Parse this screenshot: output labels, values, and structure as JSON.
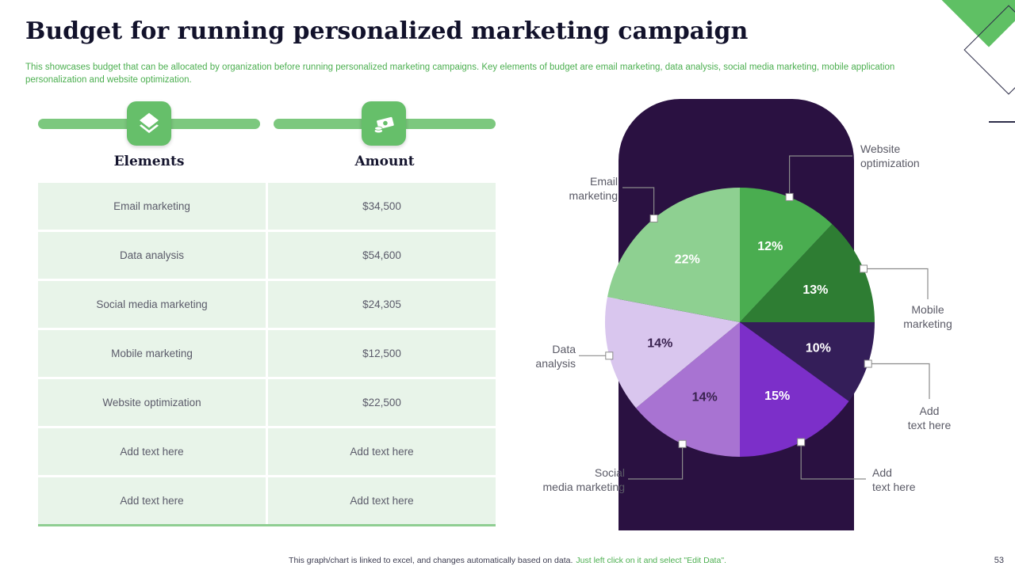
{
  "slide": {
    "title": "Budget for running personalized marketing campaign",
    "subtitle": "This showcases budget that can be allocated by organization before running personalized marketing campaigns. Key elements of budget are email marketing, data analysis, social media marketing, mobile application personalization and website optimization.",
    "footer_plain": "This graph/chart is linked to excel, and changes automatically based on data.",
    "footer_highlight": "Just left click on it and select \"Edit Data\".",
    "page_number": "53"
  },
  "table": {
    "columns": [
      "Elements",
      "Amount"
    ],
    "header_icons": [
      "layers-icon",
      "money-icon"
    ],
    "rows": [
      [
        "Email marketing",
        "$34,500"
      ],
      [
        "Data analysis",
        "$54,600"
      ],
      [
        "Social media marketing",
        "$24,305"
      ],
      [
        "Mobile marketing",
        "$12,500"
      ],
      [
        "Website optimization",
        "$22,500"
      ],
      [
        "Add text here",
        "Add text here"
      ],
      [
        "Add text here",
        "Add text here"
      ]
    ]
  },
  "chart_data": {
    "type": "pie",
    "title": "",
    "direction": "clockwise",
    "start_angle_deg": 0,
    "legend_position": "outside-callouts",
    "slices": [
      {
        "label": "Website optimization",
        "value": 12,
        "color": "#4aad50",
        "label_color": "#ffffff"
      },
      {
        "label": "Mobile marketing",
        "value": 13,
        "color": "#2e7d33",
        "label_color": "#ffffff"
      },
      {
        "label": "Add text here",
        "value": 10,
        "color": "#341e59",
        "label_color": "#ffffff"
      },
      {
        "label": "Add text here",
        "value": 15,
        "color": "#7c2fc9",
        "label_color": "#ffffff"
      },
      {
        "label": "Social media marketing",
        "value": 14,
        "color": "#a873d2",
        "label_color": "#3a2350"
      },
      {
        "label": "Data analysis",
        "value": 14,
        "color": "#d9c6ee",
        "label_color": "#3a2350"
      },
      {
        "label": "Email marketing",
        "value": 22,
        "color": "#8ed091",
        "label_color": "#ffffff"
      }
    ],
    "callout_labels": [
      "Website\noptimization",
      "Mobile\nmarketing",
      "Add\ntext here",
      "Add\ntext here",
      "Social\nmedia marketing",
      "Data\nanalysis",
      "Email\nmarketing"
    ],
    "panel_color": "#2a1141"
  },
  "colors": {
    "accent_green": "#66bf6a",
    "row_green": "#e8f4e9",
    "subtitle_green": "#4caf50",
    "panel_purple": "#2a1141"
  }
}
